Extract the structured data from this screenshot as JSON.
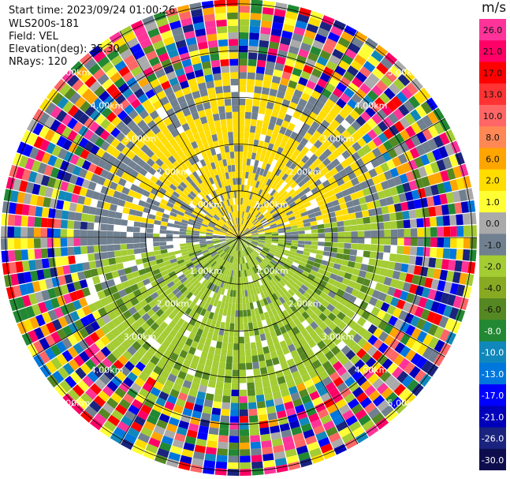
{
  "header": {
    "start_time": "Start time: 2023/09/24 01:00:26",
    "instrument": "WLS200s-181",
    "field": "Field: VEL",
    "elevation": "Elevation(deg): 35.30",
    "nrays": "NRays: 120"
  },
  "colorbar": {
    "unit": "m/s",
    "ticks": [
      "26.0",
      "21.0",
      "17.0",
      "13.0",
      "10.0",
      "8.0",
      "6.0",
      "2.0",
      "1.0",
      "0.0",
      "-1.0",
      "-2.0",
      "-4.0",
      "-6.0",
      "-8.0",
      "-10.0",
      "-13.0",
      "-17.0",
      "-21.0",
      "-26.0",
      "-30.0"
    ],
    "colors": [
      "#ff3399",
      "#ff0066",
      "#ff0000",
      "#ff3333",
      "#ff6666",
      "#ff8855",
      "#ffa500",
      "#ffdd00",
      "#ffff33",
      "#aaaaaa",
      "#708090",
      "#a4cc33",
      "#88aa22",
      "#558822",
      "#228833",
      "#1188bb",
      "#0077dd",
      "#0000ff",
      "#0000bb",
      "#1a237e",
      "#0d0d4d"
    ]
  },
  "chart_data": {
    "type": "ppi",
    "field": "VEL",
    "units": "m/s",
    "elevation_deg": 35.3,
    "n_rays": 120,
    "range_rings_km": [
      1,
      2,
      3,
      4,
      5,
      6
    ],
    "range_ring_labels": [
      "1.00km",
      "2.00km",
      "3.00km",
      "4.00km",
      "5.00km",
      "6.00km"
    ],
    "velocity_pattern": {
      "north_sector_velocity": 2.0,
      "south_sector_velocity": -2.0,
      "clean_range_max_km": 3.5,
      "noisy_range_start_km": 3.5
    }
  }
}
